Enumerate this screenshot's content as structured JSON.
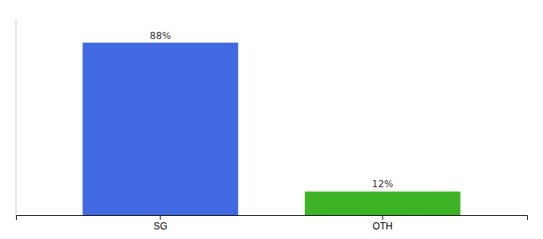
{
  "chart_data": {
    "type": "bar",
    "categories": [
      "SG",
      "OTH"
    ],
    "values": [
      88,
      12
    ],
    "value_labels": [
      "88%",
      "12%"
    ],
    "colors": [
      "#4169e1",
      "#3cb324"
    ],
    "ylim": [
      0,
      100
    ],
    "data_labels": true,
    "tick_labels": "x"
  }
}
